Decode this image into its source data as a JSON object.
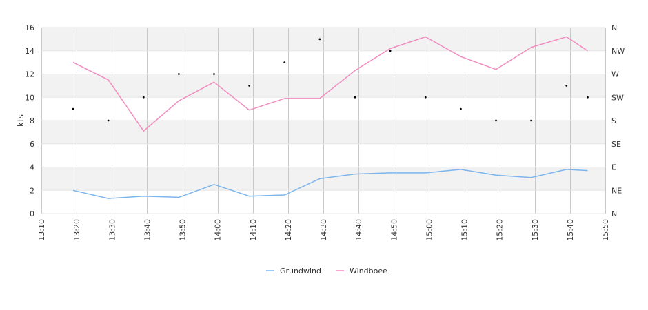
{
  "chart_data": {
    "type": "line",
    "title": "",
    "xlabel": "",
    "ylabel": "kts",
    "ylim": [
      0,
      16
    ],
    "yticks": [
      0,
      2,
      4,
      6,
      8,
      10,
      12,
      14,
      16
    ],
    "right_axis": {
      "ticks": [
        {
          "value": 0,
          "label": "N"
        },
        {
          "value": 2,
          "label": "NE"
        },
        {
          "value": 4,
          "label": "E"
        },
        {
          "value": 6,
          "label": "SE"
        },
        {
          "value": 8,
          "label": "S"
        },
        {
          "value": 10,
          "label": "SW"
        },
        {
          "value": 12,
          "label": "W"
        },
        {
          "value": 14,
          "label": "NW"
        },
        {
          "value": 16,
          "label": "N"
        }
      ]
    },
    "xlim": [
      "13:10",
      "15:50"
    ],
    "xticks": [
      "13:10",
      "13:20",
      "13:30",
      "13:40",
      "13:50",
      "14:00",
      "14:10",
      "14:20",
      "14:30",
      "14:40",
      "14:50",
      "15:00",
      "15:10",
      "15:20",
      "15:30",
      "15:40",
      "15:50"
    ],
    "x": [
      "13:19",
      "13:29",
      "13:39",
      "13:49",
      "13:59",
      "14:09",
      "14:19",
      "14:29",
      "14:39",
      "14:49",
      "14:59",
      "15:09",
      "15:19",
      "15:29",
      "15:39",
      "15:45"
    ],
    "series": [
      {
        "name": "Grundwind",
        "color": "#7cb5ec",
        "values": [
          2.0,
          1.3,
          1.5,
          1.4,
          2.5,
          1.5,
          1.6,
          3.0,
          3.4,
          3.5,
          3.5,
          3.8,
          3.3,
          3.1,
          3.8,
          3.7
        ]
      },
      {
        "name": "Windboee",
        "color": "#f08cbf",
        "values": [
          13.0,
          11.5,
          7.1,
          9.7,
          11.3,
          8.9,
          9.9,
          9.9,
          12.3,
          14.2,
          15.2,
          13.5,
          12.4,
          14.3,
          15.2,
          14.0
        ]
      }
    ],
    "direction_points": {
      "color": "#000000",
      "x": [
        "13:19",
        "13:29",
        "13:39",
        "13:49",
        "13:59",
        "14:09",
        "14:19",
        "14:29",
        "14:39",
        "14:49",
        "14:59",
        "15:09",
        "15:19",
        "15:29",
        "15:39",
        "15:45"
      ],
      "values": [
        9,
        8,
        10,
        12,
        12,
        11,
        13,
        15,
        10,
        14,
        10,
        9,
        8,
        8,
        11,
        10
      ]
    },
    "grid": true,
    "band_color": "#f2f2f2",
    "legend_position": "bottom-center"
  }
}
